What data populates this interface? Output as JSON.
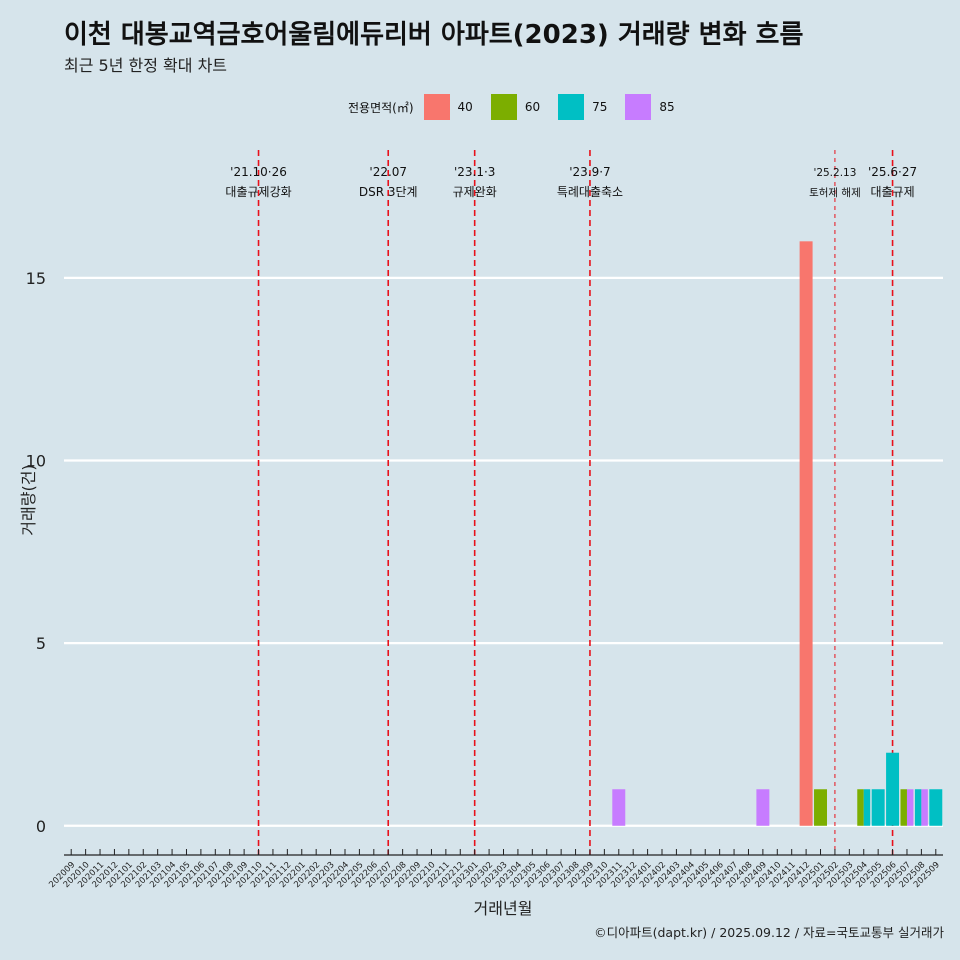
{
  "chart_data": {
    "type": "bar",
    "title": "이천 대봉교역금호어울림에듀리버 아파트(2023) 거래량 변화 흐름",
    "subtitle": "최근 5년 한정 확대 차트",
    "xlabel": "거래년월",
    "ylabel": "거래량(건)",
    "ylim": [
      -0.8,
      18.5
    ],
    "yticks": [
      0,
      5,
      10,
      15
    ],
    "legend_title": "전용면적(㎡)",
    "legend_position": "top",
    "grid": "horizontal major",
    "categories": [
      "202009",
      "202010",
      "202011",
      "202012",
      "202101",
      "202102",
      "202103",
      "202104",
      "202105",
      "202106",
      "202107",
      "202108",
      "202109",
      "202110",
      "202111",
      "202112",
      "202201",
      "202202",
      "202203",
      "202204",
      "202205",
      "202206",
      "202207",
      "202208",
      "202209",
      "202210",
      "202211",
      "202212",
      "202301",
      "202302",
      "202303",
      "202304",
      "202305",
      "202306",
      "202307",
      "202308",
      "202309",
      "202310",
      "202311",
      "202312",
      "202401",
      "202402",
      "202403",
      "202404",
      "202405",
      "202406",
      "202407",
      "202408",
      "202409",
      "202410",
      "202411",
      "202412",
      "202501",
      "202502",
      "202503",
      "202504",
      "202505",
      "202506",
      "202507",
      "202508",
      "202509"
    ],
    "series": [
      {
        "name": "40",
        "color": "#f8766d",
        "points": [
          {
            "x": "202412",
            "y": 16
          }
        ]
      },
      {
        "name": "60",
        "color": "#7cae00",
        "points": [
          {
            "x": "202501",
            "y": 1
          },
          {
            "x": "202504",
            "y": 1
          },
          {
            "x": "202507",
            "y": 1
          }
        ]
      },
      {
        "name": "75",
        "color": "#00bfc4",
        "points": [
          {
            "x": "202504",
            "y": 1
          },
          {
            "x": "202505",
            "y": 1
          },
          {
            "x": "202506",
            "y": 2
          },
          {
            "x": "202508",
            "y": 1
          },
          {
            "x": "202509",
            "y": 1
          }
        ]
      },
      {
        "name": "85",
        "color": "#c77cff",
        "points": [
          {
            "x": "202311",
            "y": 1
          },
          {
            "x": "202409",
            "y": 1
          },
          {
            "x": "202507",
            "y": 1
          },
          {
            "x": "202508",
            "y": 1
          }
        ]
      }
    ],
    "events": [
      {
        "x": 13.5,
        "line1": "'21.10·26",
        "line2": "대출규제강화",
        "style": "major"
      },
      {
        "x": 22.5,
        "line1": "'22.07",
        "line2": "DSR 3단계",
        "style": "major"
      },
      {
        "x": 28.5,
        "line1": "'23.1·3",
        "line2": "규제완화",
        "style": "major"
      },
      {
        "x": 36.5,
        "line1": "'23.9·7",
        "line2": "특례대출축소",
        "style": "major"
      },
      {
        "x": 53.5,
        "line1": "'25.2.13",
        "line2": "토허제 해제",
        "style": "minor"
      },
      {
        "x": 57.5,
        "line1": "'25.6·27",
        "line2": "대출규제",
        "style": "major"
      }
    ]
  },
  "footer": "©디아파트(dapt.kr) / 2025.09.12 / 자료=국토교통부 실거래가"
}
